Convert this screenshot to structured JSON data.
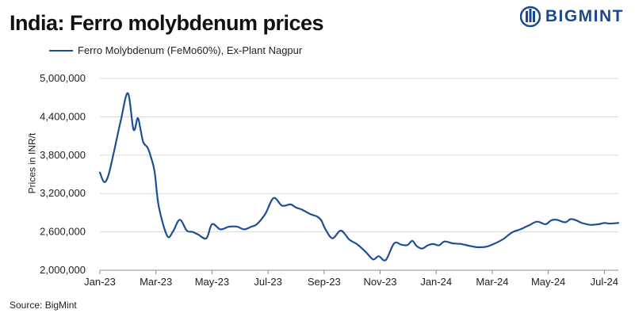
{
  "header": {
    "title": "India: Ferro molybdenum prices",
    "logo_text": "BIGMINT"
  },
  "footer": {
    "source": "Source: BigMint"
  },
  "colors": {
    "series": "#1f4e96",
    "grid": "#d9d9d9",
    "logo": "#1a4a8c"
  },
  "chart_data": {
    "type": "line",
    "title": "India: Ferro molybdenum prices",
    "ylabel": "Prices in INR/t",
    "xlabel": "",
    "ylim": [
      2000000,
      5000000
    ],
    "yticks": [
      2000000,
      2600000,
      3200000,
      3800000,
      4400000,
      5000000
    ],
    "ytick_labels": [
      "2,000,000",
      "2,600,000",
      "3,200,000",
      "3,800,000",
      "4,400,000",
      "5,000,000"
    ],
    "xlim": [
      0,
      18.5
    ],
    "xticks": [
      0,
      2,
      4,
      6,
      8,
      10,
      12,
      14,
      16,
      18
    ],
    "xtick_labels": [
      "Jan-23",
      "Mar-23",
      "May-23",
      "Jul-23",
      "Sep-23",
      "Nov-23",
      "Jan-24",
      "Mar-24",
      "May-24",
      "Jul-24"
    ],
    "grid": "horizontal",
    "legend": "top-left",
    "series": [
      {
        "name": "Ferro Molybdenum (FeMo60%), Ex-Plant Nagpur",
        "x": [
          0,
          0.15,
          0.3,
          0.5,
          0.75,
          1.0,
          1.2,
          1.35,
          1.45,
          1.55,
          1.7,
          1.8,
          1.95,
          2.1,
          2.4,
          2.6,
          2.85,
          3.1,
          3.3,
          3.5,
          3.8,
          4.0,
          4.3,
          4.6,
          4.9,
          5.15,
          5.4,
          5.6,
          5.9,
          6.2,
          6.5,
          6.8,
          7.0,
          7.2,
          7.5,
          7.75,
          7.9,
          8.05,
          8.3,
          8.6,
          8.9,
          9.2,
          9.5,
          9.75,
          9.95,
          10.2,
          10.5,
          10.75,
          10.9,
          11.0,
          11.15,
          11.3,
          11.5,
          11.7,
          11.9,
          12.1,
          12.3,
          12.6,
          12.9,
          13.2,
          13.5,
          13.8,
          14.1,
          14.4,
          14.7,
          15.0,
          15.3,
          15.6,
          15.9,
          16.1,
          16.3,
          16.6,
          16.8,
          17.0,
          17.2,
          17.5,
          17.8,
          18.0,
          18.2,
          18.5
        ],
        "y": [
          3530000,
          3380000,
          3480000,
          3850000,
          4350000,
          4770000,
          4200000,
          4380000,
          4200000,
          4000000,
          3920000,
          3800000,
          3550000,
          3000000,
          2540000,
          2600000,
          2790000,
          2620000,
          2600000,
          2560000,
          2500000,
          2720000,
          2640000,
          2680000,
          2680000,
          2640000,
          2680000,
          2720000,
          2880000,
          3130000,
          3010000,
          3030000,
          2980000,
          2950000,
          2880000,
          2840000,
          2780000,
          2640000,
          2500000,
          2620000,
          2480000,
          2400000,
          2280000,
          2170000,
          2220000,
          2160000,
          2420000,
          2400000,
          2390000,
          2400000,
          2460000,
          2380000,
          2340000,
          2390000,
          2410000,
          2390000,
          2450000,
          2420000,
          2410000,
          2380000,
          2360000,
          2370000,
          2420000,
          2490000,
          2590000,
          2640000,
          2700000,
          2760000,
          2720000,
          2780000,
          2790000,
          2750000,
          2800000,
          2780000,
          2740000,
          2710000,
          2720000,
          2740000,
          2730000,
          2740000
        ]
      }
    ]
  }
}
